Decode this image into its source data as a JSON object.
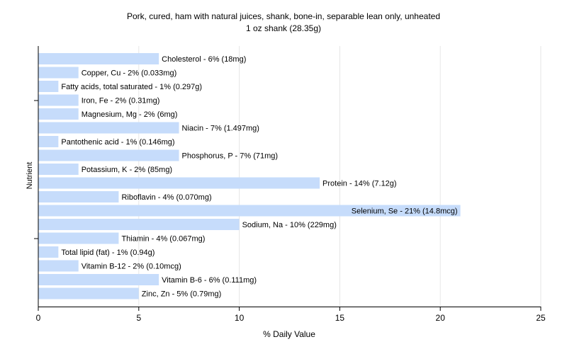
{
  "chart_data": {
    "type": "bar",
    "orientation": "horizontal",
    "title": "Pork, cured, ham with natural juices, shank, bone-in, separable lean only, unheated",
    "subtitle": "1 oz shank (28.35g)",
    "xlabel": "% Daily Value",
    "ylabel": "Nutrient",
    "xlim": [
      0,
      25
    ],
    "xticks": [
      0,
      5,
      10,
      15,
      20,
      25
    ],
    "grid": true,
    "bar_color": "#c6dcfb",
    "grid_color": "#e6e6e6",
    "categories": [
      "Cholesterol",
      "Copper, Cu",
      "Fatty acids, total saturated",
      "Iron, Fe",
      "Magnesium, Mg",
      "Niacin",
      "Pantothenic acid",
      "Phosphorus, P",
      "Potassium, K",
      "Protein",
      "Riboflavin",
      "Selenium, Se",
      "Sodium, Na",
      "Thiamin",
      "Total lipid (fat)",
      "Vitamin B-12",
      "Vitamin B-6",
      "Zinc, Zn"
    ],
    "values": [
      6,
      2,
      1,
      2,
      2,
      7,
      1,
      7,
      2,
      14,
      4,
      21,
      10,
      4,
      1,
      2,
      6,
      5
    ],
    "labels": [
      "Cholesterol - 6% (18mg)",
      "Copper, Cu - 2% (0.033mg)",
      "Fatty acids, total saturated - 1% (0.297g)",
      "Iron, Fe - 2% (0.31mg)",
      "Magnesium, Mg - 2% (6mg)",
      "Niacin - 7% (1.497mg)",
      "Pantothenic acid - 1% (0.146mg)",
      "Phosphorus, P - 7% (71mg)",
      "Potassium, K - 2% (85mg)",
      "Protein - 14% (7.12g)",
      "Riboflavin - 4% (0.070mg)",
      "Selenium, Se - 21% (14.8mcg)",
      "Sodium, Na - 10% (229mg)",
      "Thiamin - 4% (0.067mg)",
      "Total lipid (fat) - 1% (0.94g)",
      "Vitamin B-12 - 2% (0.10mcg)",
      "Vitamin B-6 - 6% (0.111mg)",
      "Zinc, Zn - 5% (0.79mg)"
    ]
  }
}
